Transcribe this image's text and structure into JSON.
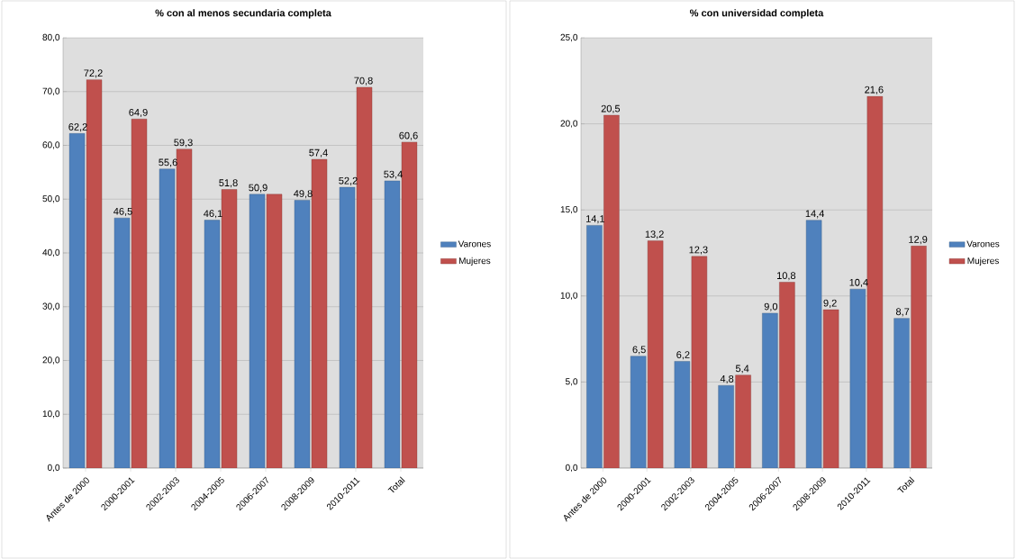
{
  "chart_data": [
    {
      "type": "bar",
      "title": "% con al menos secundaria completa",
      "categories": [
        "Antes de 2000",
        "2000-2001",
        "2002-2003",
        "2004-2005",
        "2006-2007",
        "2008-2009",
        "2010-2011",
        "Total"
      ],
      "series": [
        {
          "name": "Varones",
          "color": "#4f81bd",
          "values": [
            62.2,
            46.5,
            55.6,
            46.1,
            50.9,
            49.8,
            52.2,
            53.4
          ],
          "value_labels": [
            "62,2",
            "46,5",
            "55,6",
            "46,1",
            "50,9",
            "49,8",
            "52,2",
            "53,4"
          ]
        },
        {
          "name": "Mujeres",
          "color": "#c0504d",
          "values": [
            72.2,
            64.9,
            59.3,
            51.8,
            50.9,
            57.4,
            70.8,
            60.6
          ],
          "value_labels": [
            "72,2",
            "64,9",
            "59,3",
            "51,8",
            null,
            "57,4",
            "70,8",
            "60,6"
          ]
        }
      ],
      "ylim": [
        0,
        80
      ],
      "yticks": [
        {
          "value": 0,
          "label": "0,0"
        },
        {
          "value": 10,
          "label": "10,0"
        },
        {
          "value": 20,
          "label": "20,0"
        },
        {
          "value": 30,
          "label": "30,0"
        },
        {
          "value": 40,
          "label": "40,0"
        },
        {
          "value": 50,
          "label": "50,0"
        },
        {
          "value": 60,
          "label": "60,0"
        },
        {
          "value": 70,
          "label": "70,0"
        },
        {
          "value": 80,
          "label": "80,0"
        }
      ],
      "grid": "y",
      "legend": "right"
    },
    {
      "type": "bar",
      "title": "% con universidad completa",
      "categories": [
        "Antes de 2000",
        "2000-2001",
        "2002-2003",
        "2004-2005",
        "2006-2007",
        "2008-2009",
        "2010-2011",
        "Total"
      ],
      "series": [
        {
          "name": "Varones",
          "color": "#4f81bd",
          "values": [
            14.1,
            6.5,
            6.2,
            4.8,
            9.0,
            14.4,
            10.4,
            8.7
          ],
          "value_labels": [
            "14,1",
            "6,5",
            "6,2",
            "4,8",
            "9,0",
            "14,4",
            "10,4",
            "8,7"
          ]
        },
        {
          "name": "Mujeres",
          "color": "#c0504d",
          "values": [
            20.5,
            13.2,
            12.3,
            5.4,
            10.8,
            9.2,
            21.6,
            12.9
          ],
          "value_labels": [
            "20,5",
            "13,2",
            "12,3",
            "5,4",
            "10,8",
            "9,2",
            "21,6",
            "12,9"
          ]
        }
      ],
      "ylim": [
        0,
        25
      ],
      "yticks": [
        {
          "value": 0,
          "label": "0,0"
        },
        {
          "value": 5,
          "label": "5,0"
        },
        {
          "value": 10,
          "label": "10,0"
        },
        {
          "value": 15,
          "label": "15,0"
        },
        {
          "value": 20,
          "label": "20,0"
        },
        {
          "value": 25,
          "label": "25,0"
        }
      ],
      "grid": "y",
      "legend": "right"
    }
  ]
}
